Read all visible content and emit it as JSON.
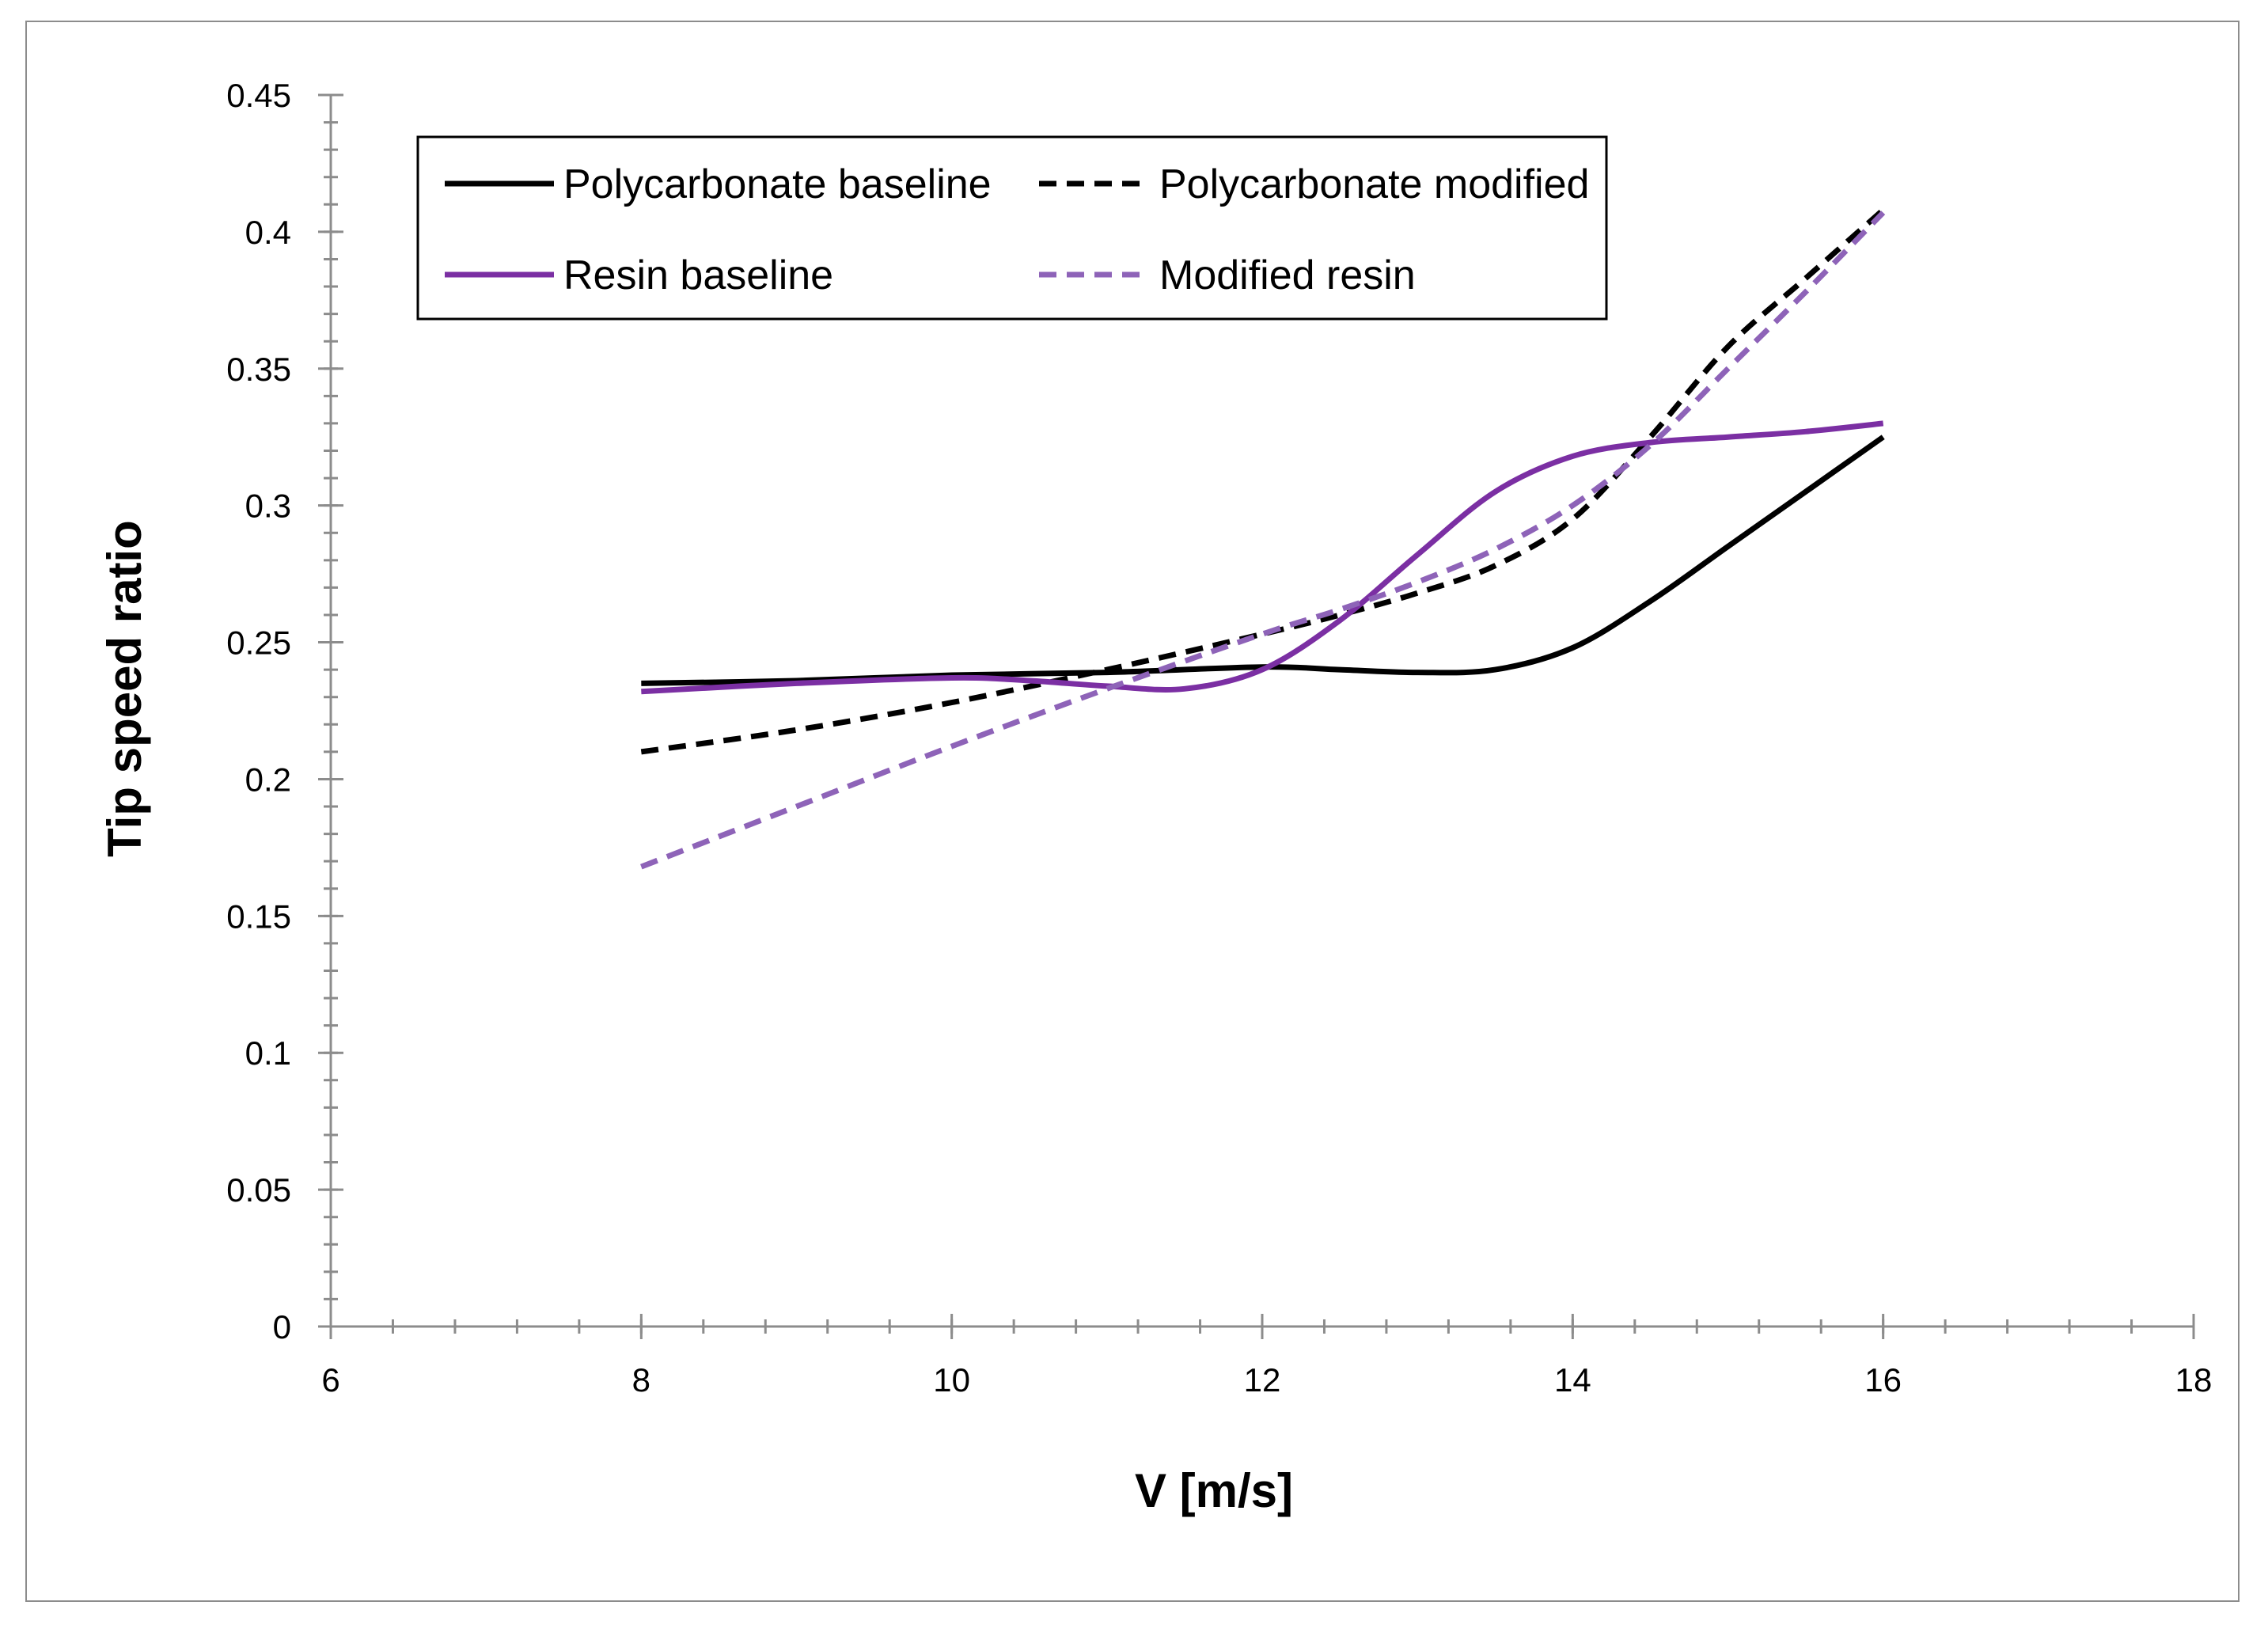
{
  "chart_data": {
    "type": "line",
    "title": "",
    "xlabel": "V [m/s]",
    "ylabel": "Tip speed ratio",
    "xlim": [
      6,
      18
    ],
    "ylim": [
      0,
      0.45
    ],
    "x_ticks": [
      6,
      8,
      10,
      12,
      14,
      16,
      18
    ],
    "y_ticks": [
      0,
      0.05,
      0.1,
      0.15,
      0.2,
      0.25,
      0.3,
      0.35,
      0.4,
      0.45
    ],
    "x_tick_labels": [
      "6",
      "8",
      "10",
      "12",
      "14",
      "16",
      "18"
    ],
    "y_tick_labels": [
      "0",
      "0.05",
      "0.1",
      "0.15",
      "0.2",
      "0.25",
      "0.3",
      "0.35",
      "0.4",
      "0.45"
    ],
    "x_minor_step": 0.4,
    "y_minor_step": 0.01,
    "grid": false,
    "legend_position": "top-left",
    "series": [
      {
        "name": "Polycarbonate baseline",
        "color": "#000000",
        "dash": "solid",
        "x": [
          8,
          9,
          10,
          11,
          12,
          12.5,
          13,
          13.5,
          14,
          14.5,
          15,
          15.5,
          16
        ],
        "values": [
          0.235,
          0.236,
          0.238,
          0.239,
          0.241,
          0.24,
          0.239,
          0.24,
          0.248,
          0.265,
          0.285,
          0.305,
          0.325
        ]
      },
      {
        "name": "Polycarbonate modified",
        "color": "#000000",
        "dash": "dashed",
        "x": [
          8,
          9,
          10,
          11,
          12,
          12.5,
          13,
          13.5,
          14,
          14.5,
          15,
          15.5,
          16
        ],
        "values": [
          0.21,
          0.218,
          0.228,
          0.24,
          0.253,
          0.26,
          0.268,
          0.278,
          0.295,
          0.325,
          0.358,
          0.383,
          0.408
        ]
      },
      {
        "name": "Resin baseline",
        "color": "#7b2fa3",
        "dash": "solid",
        "x": [
          8,
          9,
          10,
          10.5,
          11,
          11.5,
          12,
          12.5,
          13,
          13.5,
          14,
          14.5,
          15,
          15.5,
          16
        ],
        "values": [
          0.232,
          0.235,
          0.237,
          0.236,
          0.234,
          0.233,
          0.24,
          0.258,
          0.282,
          0.305,
          0.318,
          0.323,
          0.325,
          0.327,
          0.33
        ]
      },
      {
        "name": "Modified resin",
        "color": "#8e63b8",
        "dash": "dashed",
        "x": [
          8,
          9,
          10,
          11,
          12,
          12.5,
          13,
          13.5,
          14,
          14.5,
          15,
          15.5,
          16
        ],
        "values": [
          0.168,
          0.19,
          0.212,
          0.233,
          0.253,
          0.262,
          0.272,
          0.284,
          0.3,
          0.322,
          0.35,
          0.378,
          0.407
        ]
      }
    ]
  }
}
